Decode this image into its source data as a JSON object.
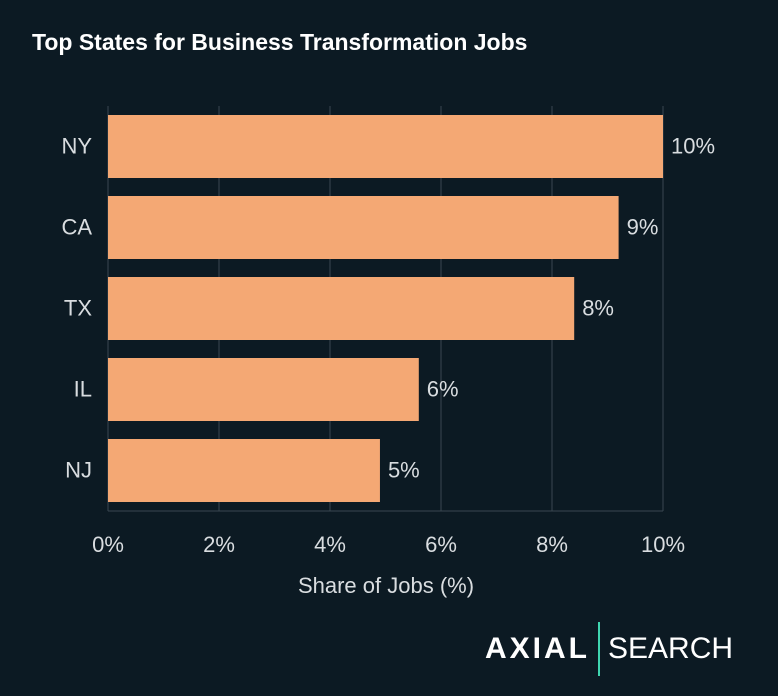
{
  "chart_data": {
    "type": "barh",
    "title": "Top States for Business Transformation Jobs",
    "categories": [
      "NY",
      "CA",
      "TX",
      "IL",
      "NJ"
    ],
    "values": [
      10,
      9.2,
      8.4,
      5.6,
      4.9
    ],
    "value_labels": [
      "10%",
      "9%",
      "8%",
      "6%",
      "5%"
    ],
    "color": "#f4a874",
    "xlabel": "Share of Jobs (%)",
    "xlim": [
      0,
      10
    ],
    "xticks": [
      {
        "value": 0,
        "label": "0%"
      },
      {
        "value": 2,
        "label": "2%"
      },
      {
        "value": 4,
        "label": "4%"
      },
      {
        "value": 6,
        "label": "6%"
      },
      {
        "value": 8,
        "label": "8%"
      },
      {
        "value": 10,
        "label": "10%"
      }
    ],
    "grid": true
  },
  "logo": {
    "brand": "AXIAL",
    "product": "SEARCH"
  }
}
